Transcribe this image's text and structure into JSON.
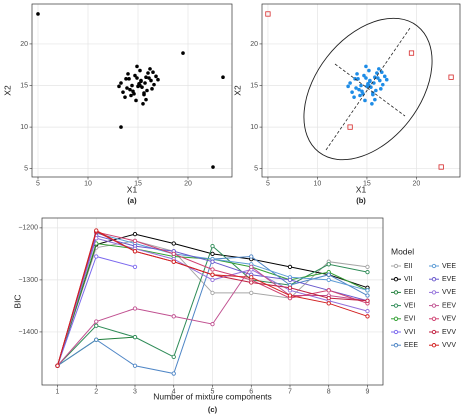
{
  "chart_data": [
    {
      "type": "scatter",
      "xlabel": "X1",
      "ylabel": "X2",
      "caption": "(a)",
      "xlim": [
        4.4,
        24.4
      ],
      "ylim": [
        4,
        24.8
      ],
      "xticks": [
        5,
        10,
        15,
        20
      ],
      "yticks": [
        5,
        10,
        15,
        20
      ],
      "grid": true,
      "series": [
        {
          "color": "#000000",
          "marker": "circle",
          "x": [
            14.2,
            15.1,
            15.8,
            14.6,
            16.3,
            13.7,
            15.4,
            14.9,
            16.0,
            15.6,
            14.4,
            13.9,
            15.2,
            16.6,
            14.8,
            15.9,
            14.1,
            15.3,
            16.2,
            13.5,
            14.7,
            15.0,
            15.7,
            16.8,
            14.3,
            13.3,
            15.5,
            16.4,
            14.0,
            15.8,
            14.5,
            16.1,
            15.2,
            13.8,
            17.0,
            14.9,
            15.6,
            13.1,
            16.5,
            15.3,
            5,
            19.5,
            23.5,
            13.3,
            22.5
          ],
          "values": [
            14.5,
            15.2,
            16.0,
            14.0,
            15.6,
            13.6,
            14.8,
            15.9,
            16.5,
            13.9,
            15.0,
            14.7,
            16.8,
            15.1,
            13.2,
            14.4,
            15.8,
            15.5,
            17.0,
            14.2,
            16.2,
            14.9,
            15.3,
            16.1,
            13.8,
            15.3,
            12.8,
            14.6,
            16.4,
            13.3,
            14.3,
            15.9,
            15.0,
            15.8,
            15.7,
            17.3,
            14.1,
            14.9,
            16.6,
            15.6,
            23.6,
            18.9,
            16,
            10,
            5.2
          ]
        }
      ]
    },
    {
      "type": "scatter",
      "xlabel": "X1",
      "ylabel": "X2",
      "caption": "(b)",
      "xlim": [
        4.4,
        24.4
      ],
      "ylim": [
        4,
        24.8
      ],
      "xticks": [
        5,
        10,
        15,
        20
      ],
      "yticks": [
        5,
        10,
        15,
        20
      ],
      "grid": true,
      "series": [
        {
          "color": "#1e8ce6",
          "marker": "circle",
          "x": [
            14.2,
            15.1,
            15.8,
            14.6,
            16.3,
            13.7,
            15.4,
            14.9,
            16.0,
            15.6,
            14.4,
            13.9,
            15.2,
            16.6,
            14.8,
            15.9,
            14.1,
            15.3,
            16.2,
            13.5,
            14.7,
            15.0,
            15.7,
            16.8,
            14.3,
            13.3,
            15.5,
            16.4,
            14.0,
            15.8,
            14.5,
            16.1,
            15.2,
            13.8,
            17.0,
            14.9,
            15.6,
            13.1,
            16.5,
            15.3
          ],
          "values": [
            14.5,
            15.2,
            16.0,
            14.0,
            15.6,
            13.6,
            14.8,
            15.9,
            16.5,
            13.9,
            15.0,
            14.7,
            16.8,
            15.1,
            13.2,
            14.4,
            15.8,
            15.5,
            17.0,
            14.2,
            16.2,
            14.9,
            15.3,
            16.1,
            13.8,
            15.3,
            12.8,
            14.6,
            16.4,
            13.3,
            14.3,
            15.9,
            15.0,
            15.8,
            15.7,
            17.3,
            14.1,
            14.9,
            16.6,
            15.6
          ]
        },
        {
          "color": "#d62728",
          "marker": "square",
          "x": [
            5,
            19.5,
            23.5,
            13.3,
            22.5
          ],
          "values": [
            23.6,
            18.9,
            16,
            10,
            5.2
          ]
        }
      ]
    },
    {
      "type": "line",
      "xlabel": "Number of mixture components",
      "ylabel": "BIC",
      "caption": "(c)",
      "legend_title": "Model",
      "legend": "right",
      "xlim": [
        0.6,
        9.4
      ],
      "ylim": [
        -1502,
        -1181
      ],
      "xticks": [
        1,
        2,
        3,
        4,
        5,
        6,
        7,
        8,
        9
      ],
      "yticks": [
        {
          "value": -1200,
          "label": "−1200"
        },
        {
          "value": -1300,
          "label": "−1300"
        },
        {
          "value": -1400,
          "label": "−1400"
        }
      ],
      "grid": true,
      "x": [
        1,
        2,
        3,
        4,
        5,
        6,
        7,
        8,
        9
      ],
      "series": [
        {
          "name": "EII",
          "color": "#a6a6a6",
          "values": [
            -1465,
            -1238,
            -1225,
            -1245,
            -1325,
            -1325,
            -1335,
            -1265,
            -1275
          ]
        },
        {
          "name": "VII",
          "color": "#000000",
          "values": [
            -1465,
            -1232,
            -1212,
            -1230,
            -1250,
            -1260,
            -1275,
            -1290,
            -1315
          ]
        },
        {
          "name": "EEI",
          "color": "#1f7f3a",
          "values": [
            -1465,
            -1415,
            -1410,
            null,
            null,
            null,
            null,
            null,
            null
          ]
        },
        {
          "name": "VEI",
          "color": "#2e8b57",
          "values": [
            -1465,
            -1388,
            -1410,
            -1448,
            -1235,
            -1300,
            -1310,
            -1270,
            -1285
          ]
        },
        {
          "name": "EVI",
          "color": "#33a033",
          "values": [
            -1465,
            -1230,
            -1240,
            -1255,
            -1260,
            -1275,
            -1300,
            -1285,
            -1320
          ]
        },
        {
          "name": "VVI",
          "color": "#7b68ee",
          "values": [
            -1465,
            -1255,
            -1275,
            null,
            null,
            null,
            null,
            null,
            null
          ]
        },
        {
          "name": "EEE",
          "color": "#4f86c6",
          "values": [
            -1465,
            -1415,
            -1465,
            -1480,
            -1260,
            -1255,
            -1310,
            -1290,
            -1330
          ]
        },
        {
          "name": "VEE",
          "color": "#5b9bd5",
          "values": [
            -1465,
            -1210,
            -1230,
            -1250,
            -1260,
            -1270,
            -1295,
            -1300,
            -1320
          ]
        },
        {
          "name": "EVE",
          "color": "#6a5acd",
          "values": [
            -1465,
            -1215,
            -1235,
            -1245,
            -1265,
            -1290,
            -1300,
            -1320,
            -1340
          ]
        },
        {
          "name": "VVE",
          "color": "#9370db",
          "values": [
            -1465,
            -1220,
            -1240,
            -1260,
            -1300,
            -1280,
            -1320,
            -1340,
            -1360
          ]
        },
        {
          "name": "EEV",
          "color": "#c05090",
          "values": [
            -1465,
            -1380,
            -1355,
            -1370,
            -1385,
            -1275,
            -1330,
            -1330,
            -1340
          ]
        },
        {
          "name": "VEV",
          "color": "#d04070",
          "values": [
            -1465,
            -1208,
            -1225,
            -1250,
            -1280,
            -1300,
            -1335,
            -1320,
            -1345
          ]
        },
        {
          "name": "EVV",
          "color": "#c02040",
          "values": [
            -1465,
            -1207,
            -1245,
            -1265,
            -1290,
            -1305,
            -1315,
            -1335,
            -1340
          ]
        },
        {
          "name": "VVV",
          "color": "#d22020",
          "values": [
            -1465,
            -1205,
            -1245,
            -1265,
            -1290,
            -1295,
            -1330,
            -1345,
            -1370
          ]
        }
      ]
    }
  ]
}
